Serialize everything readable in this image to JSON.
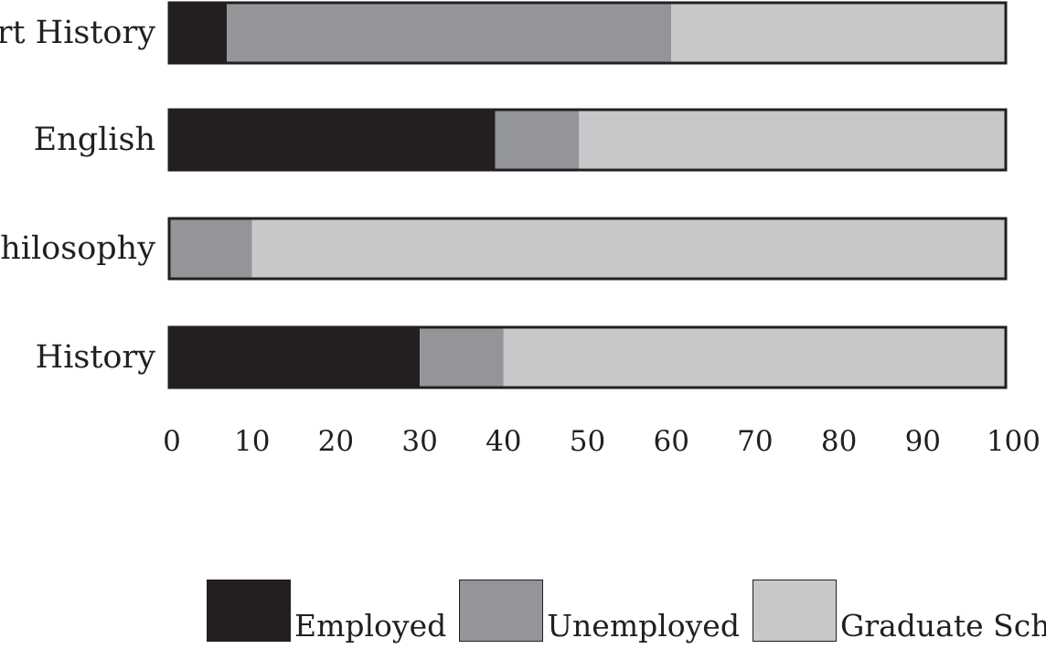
{
  "chart_data": {
    "type": "bar",
    "orientation": "horizontal",
    "stacked": true,
    "categories": [
      "Art History",
      "English",
      "Philosophy",
      "History"
    ],
    "series": [
      {
        "name": "Employed",
        "color": "#231f20",
        "values": [
          7,
          39,
          0,
          30
        ]
      },
      {
        "name": "Unemployed",
        "color": "#939598",
        "values": [
          53,
          10,
          10,
          10
        ]
      },
      {
        "name": "Graduate School",
        "color": "#c7c8ca",
        "values": [
          40,
          51,
          90,
          60
        ]
      }
    ],
    "title": "",
    "xlabel": "",
    "ylabel": "",
    "xlim": [
      0,
      100
    ],
    "xticks": [
      "0",
      "10",
      "20",
      "30",
      "40",
      "50",
      "60",
      "70",
      "80",
      "90",
      "100"
    ],
    "grid": false,
    "legend_position": "bottom"
  }
}
